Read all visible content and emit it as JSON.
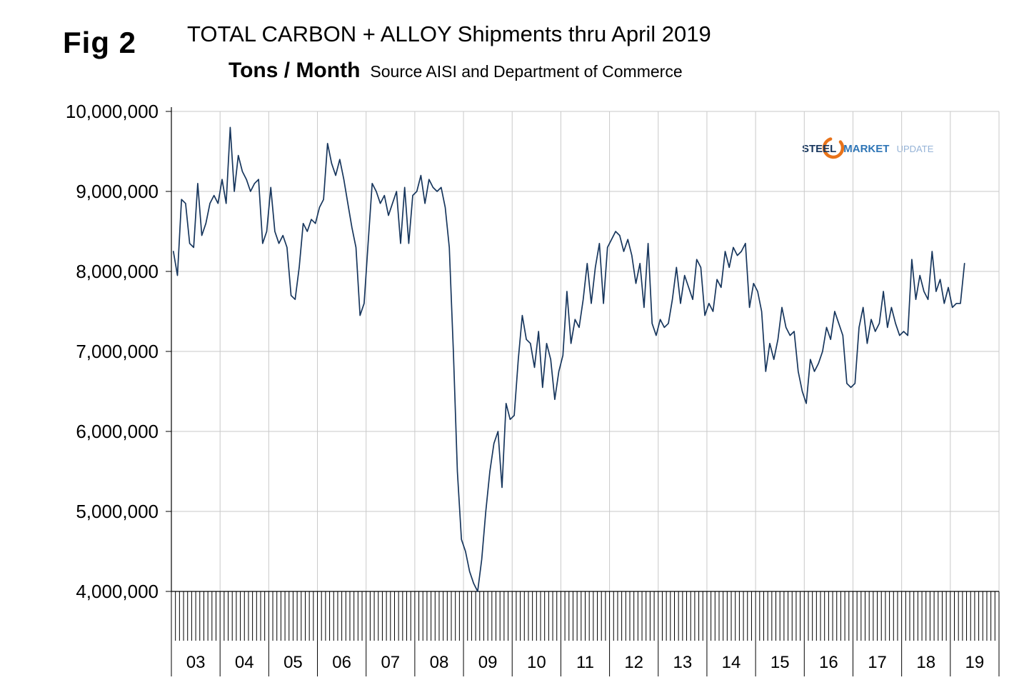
{
  "figure": {
    "fig_label": "Fig 2",
    "title": "TOTAL CARBON + ALLOY Shipments thru April 2019",
    "subtitle_bold": "Tons / Month",
    "subtitle_source": "Source AISI and Department of Commerce"
  },
  "logo": {
    "steel": "STEEL",
    "market": "MARKET",
    "update": "UPDATE",
    "accent_color": "#E8731A",
    "steel_color": "#17365D",
    "market_color": "#2E75B6",
    "update_color": "#95B3D7"
  },
  "chart_data": {
    "type": "line",
    "title": "TOTAL CARBON + ALLOY Shipments thru April 2019",
    "subtitle": "Tons / Month  Source AISI and Department of Commerce",
    "series_name": "Total Carbon + Alloy Shipments",
    "unit": "tons per month",
    "line_color": "#17365D",
    "grid": true,
    "grid_color": "#C9C9C9",
    "ylim_tons": [
      4000000,
      10000000
    ],
    "y_tick_labels": [
      "10,000,000",
      "9,000,000",
      "8,000,000",
      "7,000,000",
      "6,000,000",
      "5,000,000",
      "4,000,000"
    ],
    "y_tick_values_millions": [
      10,
      9,
      8,
      7,
      6,
      5,
      4
    ],
    "x_year_labels": [
      "03",
      "04",
      "05",
      "06",
      "07",
      "08",
      "09",
      "10",
      "11",
      "12",
      "13",
      "14",
      "15",
      "16",
      "17",
      "18",
      "19"
    ],
    "start_month": "2003-01",
    "end_month": "2019-04",
    "values_scale": "millions of tons",
    "values_millions": [
      8.25,
      7.95,
      8.9,
      8.85,
      8.35,
      8.3,
      9.1,
      8.45,
      8.6,
      8.85,
      8.95,
      8.85,
      9.15,
      8.85,
      9.8,
      9.0,
      9.45,
      9.25,
      9.15,
      9.0,
      9.1,
      9.15,
      8.35,
      8.5,
      9.05,
      8.5,
      8.35,
      8.45,
      8.3,
      7.7,
      7.65,
      8.05,
      8.6,
      8.5,
      8.65,
      8.6,
      8.8,
      8.9,
      9.6,
      9.35,
      9.2,
      9.4,
      9.15,
      8.85,
      8.55,
      8.3,
      7.45,
      7.6,
      8.35,
      9.1,
      9.0,
      8.85,
      8.95,
      8.7,
      8.85,
      9.0,
      8.35,
      9.05,
      8.35,
      8.95,
      9.0,
      9.2,
      8.85,
      9.15,
      9.05,
      9.0,
      9.05,
      8.8,
      8.3,
      7.0,
      5.5,
      4.65,
      4.5,
      4.25,
      4.1,
      4.0,
      4.4,
      5.0,
      5.5,
      5.85,
      6.0,
      5.3,
      6.35,
      6.15,
      6.2,
      6.9,
      7.45,
      7.15,
      7.1,
      6.8,
      7.25,
      6.55,
      7.1,
      6.9,
      6.4,
      6.75,
      6.95,
      7.75,
      7.1,
      7.4,
      7.3,
      7.65,
      8.1,
      7.6,
      8.05,
      8.35,
      7.6,
      8.3,
      8.4,
      8.5,
      8.45,
      8.25,
      8.4,
      8.2,
      7.85,
      8.1,
      7.55,
      8.35,
      7.35,
      7.2,
      7.4,
      7.3,
      7.35,
      7.65,
      8.05,
      7.6,
      7.95,
      7.8,
      7.65,
      8.15,
      8.05,
      7.45,
      7.6,
      7.5,
      7.9,
      7.8,
      8.25,
      8.05,
      8.3,
      8.2,
      8.25,
      8.35,
      7.55,
      7.85,
      7.75,
      7.5,
      6.75,
      7.1,
      6.9,
      7.15,
      7.55,
      7.3,
      7.2,
      7.25,
      6.75,
      6.5,
      6.35,
      6.9,
      6.75,
      6.85,
      7.0,
      7.3,
      7.15,
      7.5,
      7.35,
      7.2,
      6.6,
      6.55,
      6.6,
      7.3,
      7.55,
      7.1,
      7.4,
      7.25,
      7.35,
      7.75,
      7.3,
      7.55,
      7.35,
      7.2,
      7.25,
      7.2,
      8.15,
      7.65,
      7.95,
      7.75,
      7.65,
      8.25,
      7.75,
      7.9,
      7.6,
      7.8,
      7.55,
      7.6,
      7.6,
      8.1
    ]
  }
}
